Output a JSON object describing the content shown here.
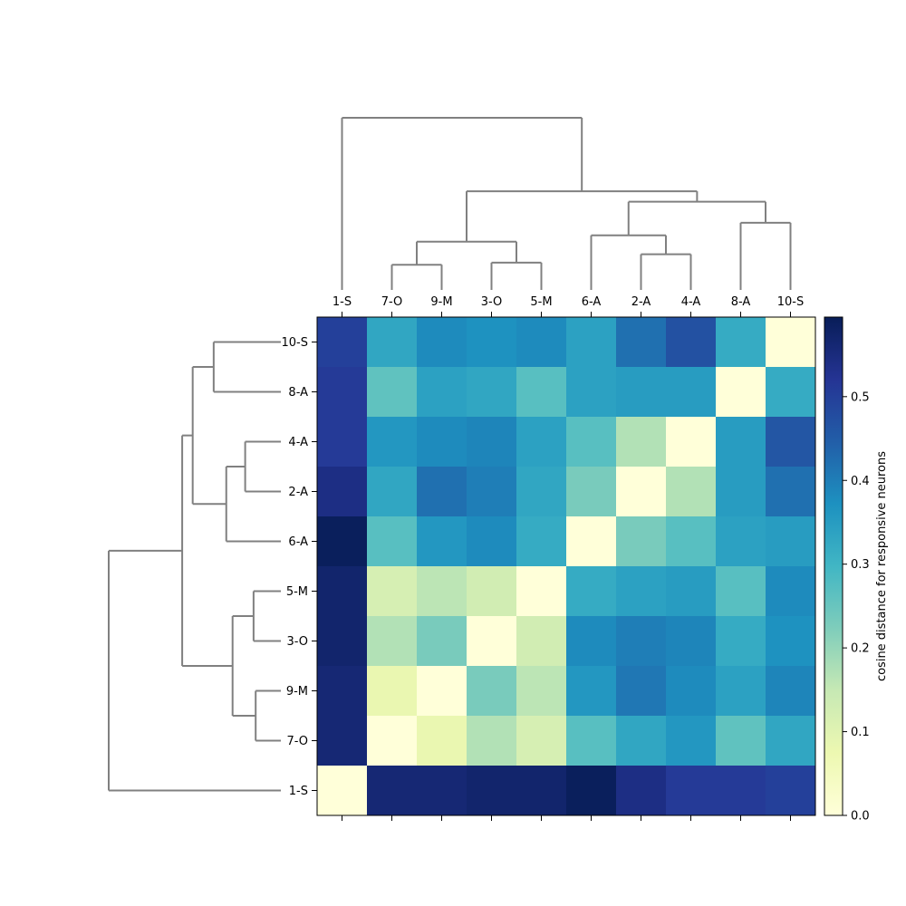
{
  "chart_data": {
    "type": "heatmap",
    "title": "",
    "colorbar_label": "cosine distance for responsive neurons",
    "colorbar_ticks": [
      0.0,
      0.1,
      0.2,
      0.3,
      0.4,
      0.5
    ],
    "colorbar_tick_labels": [
      "0.0",
      "0.1",
      "0.2",
      "0.3",
      "0.4",
      "0.5"
    ],
    "vmin": 0.0,
    "vmax": 0.595,
    "colormap": "YlGnBu",
    "colormap_stops": [
      "#ffffd9",
      "#edf8b1",
      "#c7e9b4",
      "#7fcdbb",
      "#41b6c4",
      "#1d91c0",
      "#225ea8",
      "#253494",
      "#081d58"
    ],
    "col_labels": [
      "1-S",
      "7-O",
      "9-M",
      "3-O",
      "5-M",
      "6-A",
      "2-A",
      "4-A",
      "8-A",
      "10-S"
    ],
    "row_labels": [
      "10-S",
      "8-A",
      "4-A",
      "2-A",
      "6-A",
      "5-M",
      "3-O",
      "9-M",
      "7-O",
      "1-S"
    ],
    "values": [
      [
        0.5,
        0.33,
        0.38,
        0.37,
        0.38,
        0.34,
        0.42,
        0.47,
        0.32,
        0.0
      ],
      [
        0.51,
        0.26,
        0.34,
        0.33,
        0.27,
        0.34,
        0.35,
        0.35,
        0.0,
        0.32
      ],
      [
        0.51,
        0.36,
        0.38,
        0.39,
        0.34,
        0.27,
        0.17,
        0.0,
        0.35,
        0.46
      ],
      [
        0.54,
        0.33,
        0.42,
        0.4,
        0.33,
        0.23,
        0.0,
        0.17,
        0.35,
        0.42
      ],
      [
        0.59,
        0.27,
        0.36,
        0.38,
        0.32,
        0.0,
        0.23,
        0.27,
        0.34,
        0.35
      ],
      [
        0.57,
        0.12,
        0.16,
        0.13,
        0.0,
        0.32,
        0.34,
        0.35,
        0.27,
        0.38
      ],
      [
        0.57,
        0.17,
        0.23,
        0.0,
        0.13,
        0.38,
        0.4,
        0.39,
        0.32,
        0.37
      ],
      [
        0.56,
        0.08,
        0.0,
        0.23,
        0.16,
        0.36,
        0.41,
        0.38,
        0.34,
        0.39
      ],
      [
        0.56,
        0.0,
        0.08,
        0.17,
        0.12,
        0.27,
        0.33,
        0.36,
        0.26,
        0.33
      ],
      [
        0.0,
        0.56,
        0.56,
        0.57,
        0.57,
        0.59,
        0.54,
        0.51,
        0.51,
        0.5
      ]
    ],
    "col_dendrogram": [
      {
        "i": 1,
        "j": 2,
        "h": 0.12
      },
      {
        "i": 3,
        "j": 4,
        "h": 0.13
      },
      {
        "i": 6,
        "j": 7,
        "h": 0.17
      },
      {
        "i": 1,
        "j": 3,
        "h": 0.23
      },
      {
        "i": 5,
        "j": 6,
        "h": 0.26
      },
      {
        "i": 8,
        "j": 9,
        "h": 0.32
      },
      {
        "i": 5,
        "j": 8,
        "h": 0.42
      },
      {
        "i": 1,
        "j": 5,
        "h": 0.47
      },
      {
        "i": 0,
        "j": 1,
        "h": 0.82
      }
    ],
    "row_dendrogram": [
      {
        "i": 0,
        "j": 1,
        "h": 0.32
      },
      {
        "i": 2,
        "j": 3,
        "h": 0.17
      },
      {
        "i": 2,
        "j": 4,
        "h": 0.26
      },
      {
        "i": 0,
        "j": 2,
        "h": 0.42
      },
      {
        "i": 5,
        "j": 6,
        "h": 0.13
      },
      {
        "i": 7,
        "j": 8,
        "h": 0.12
      },
      {
        "i": 5,
        "j": 7,
        "h": 0.23
      },
      {
        "i": 0,
        "j": 5,
        "h": 0.47
      },
      {
        "i": 0,
        "j": 9,
        "h": 0.82
      }
    ]
  }
}
